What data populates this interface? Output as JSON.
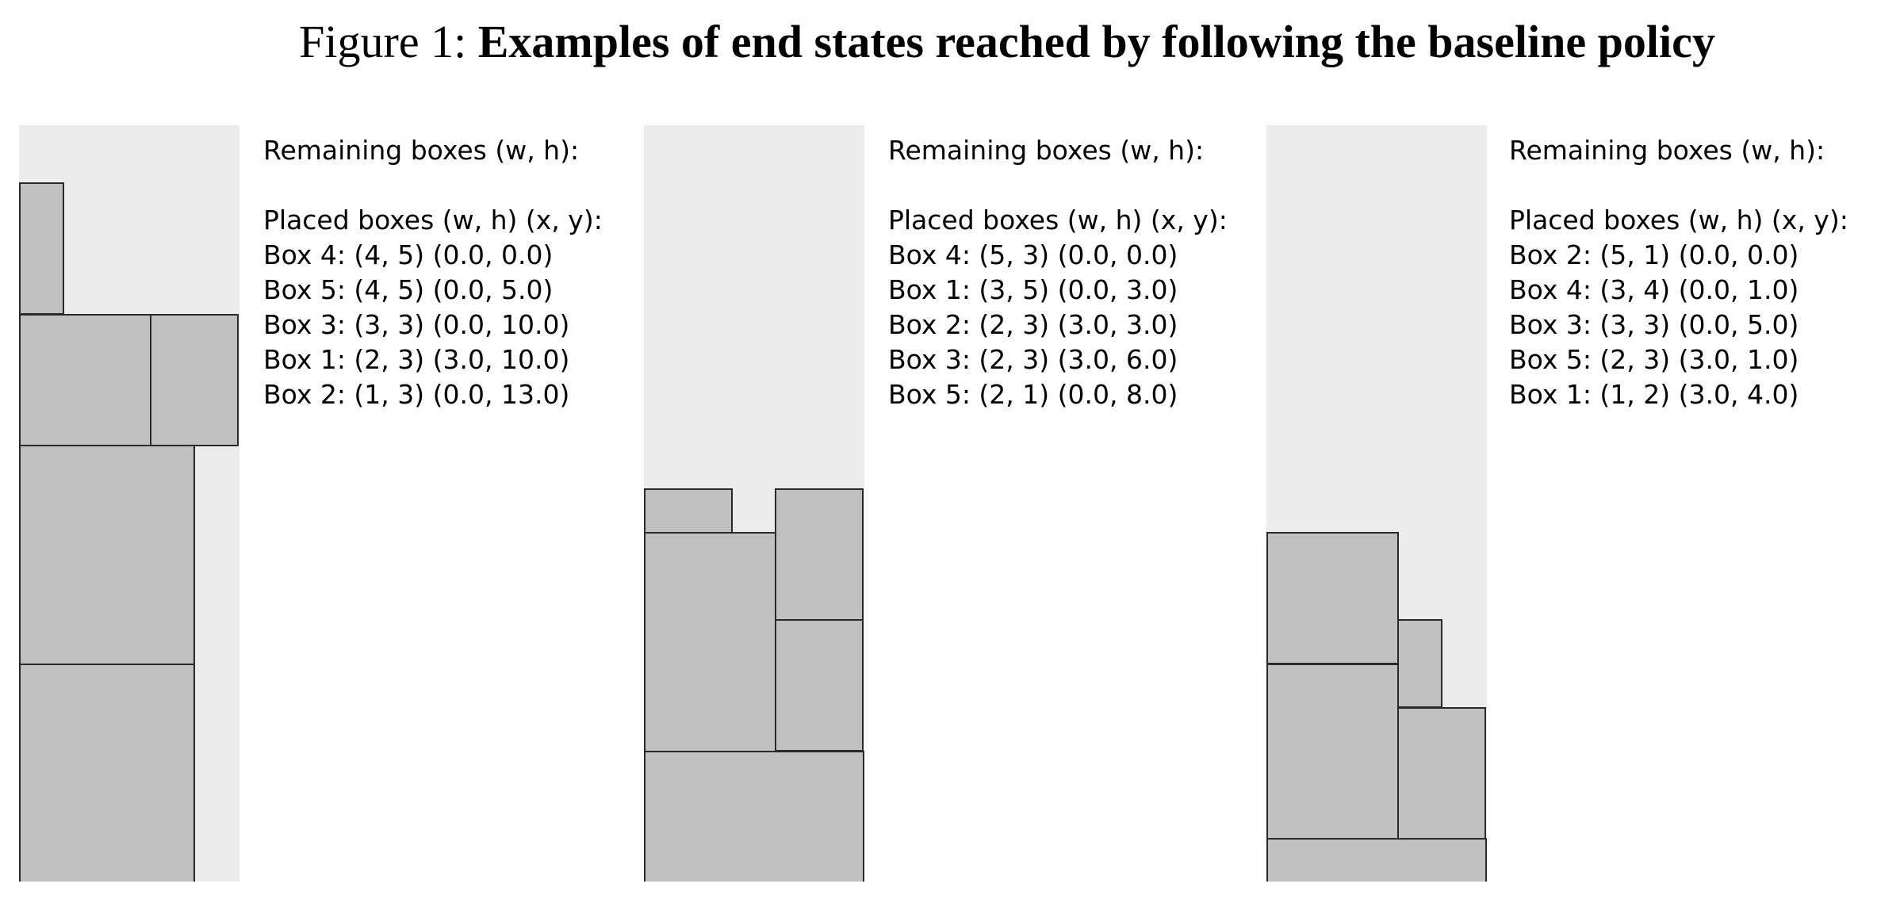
{
  "caption": {
    "label": "Figure 1: ",
    "title": "Examples of end states reached by following the baseline policy"
  },
  "colors": {
    "bin_background": "#ececec",
    "box_fill": "#c0c0c0",
    "box_border": "#2a2a2a"
  },
  "panels": [
    {
      "remaining_header": "Remaining boxes (w, h):",
      "placed_header": "Placed boxes (w, h) (x, y):",
      "placed": [
        "Box 4: (4, 5) (0.0, 0.0)",
        "Box 5: (4, 5) (0.0, 5.0)",
        "Box 3: (3, 3) (0.0, 10.0)",
        "Box 1: (2, 3) (3.0, 10.0)",
        "Box 2: (1, 3) (0.0, 13.0)"
      ],
      "boxes": [
        {
          "box": 4,
          "w": 4,
          "h": 5,
          "x": 0.0,
          "y": 0.0
        },
        {
          "box": 5,
          "w": 4,
          "h": 5,
          "x": 0.0,
          "y": 5.0
        },
        {
          "box": 3,
          "w": 3,
          "h": 3,
          "x": 0.0,
          "y": 10.0
        },
        {
          "box": 1,
          "w": 2,
          "h": 3,
          "x": 3.0,
          "y": 10.0
        },
        {
          "box": 2,
          "w": 1,
          "h": 3,
          "x": 0.0,
          "y": 13.0
        }
      ]
    },
    {
      "remaining_header": "Remaining boxes (w, h):",
      "placed_header": "Placed boxes (w, h) (x, y):",
      "placed": [
        "Box 4: (5, 3) (0.0, 0.0)",
        "Box 1: (3, 5) (0.0, 3.0)",
        "Box 2: (2, 3) (3.0, 3.0)",
        "Box 3: (2, 3) (3.0, 6.0)",
        "Box 5: (2, 1) (0.0, 8.0)"
      ],
      "boxes": [
        {
          "box": 4,
          "w": 5,
          "h": 3,
          "x": 0.0,
          "y": 0.0
        },
        {
          "box": 1,
          "w": 3,
          "h": 5,
          "x": 0.0,
          "y": 3.0
        },
        {
          "box": 2,
          "w": 2,
          "h": 3,
          "x": 3.0,
          "y": 3.0
        },
        {
          "box": 3,
          "w": 2,
          "h": 3,
          "x": 3.0,
          "y": 6.0
        },
        {
          "box": 5,
          "w": 2,
          "h": 1,
          "x": 0.0,
          "y": 8.0
        }
      ]
    },
    {
      "remaining_header": "Remaining boxes (w, h):",
      "placed_header": "Placed boxes (w, h) (x, y):",
      "placed": [
        "Box 2: (5, 1) (0.0, 0.0)",
        "Box 4: (3, 4) (0.0, 1.0)",
        "Box 3: (3, 3) (0.0, 5.0)",
        "Box 5: (2, 3) (3.0, 1.0)",
        "Box 1: (1, 2) (3.0, 4.0)"
      ],
      "boxes": [
        {
          "box": 2,
          "w": 5,
          "h": 1,
          "x": 0.0,
          "y": 0.0
        },
        {
          "box": 4,
          "w": 3,
          "h": 4,
          "x": 0.0,
          "y": 1.0
        },
        {
          "box": 3,
          "w": 3,
          "h": 3,
          "x": 0.0,
          "y": 5.0
        },
        {
          "box": 5,
          "w": 2,
          "h": 3,
          "x": 3.0,
          "y": 1.0
        },
        {
          "box": 1,
          "w": 1,
          "h": 2,
          "x": 3.0,
          "y": 4.0
        }
      ]
    }
  ]
}
